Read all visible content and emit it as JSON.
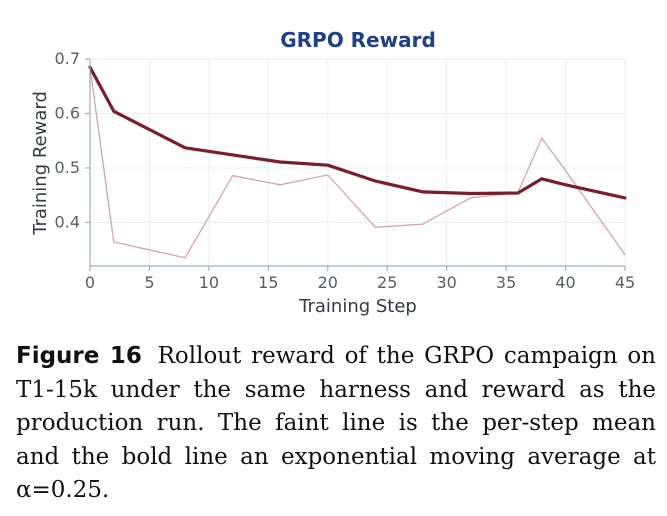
{
  "chart_data": {
    "type": "line",
    "title": "GRPO Reward",
    "xlabel": "Training Step",
    "ylabel": "Training Reward",
    "xlim": [
      0,
      45
    ],
    "ylim": [
      0.32,
      0.7
    ],
    "xticks": [
      0,
      5,
      10,
      15,
      20,
      25,
      30,
      35,
      40,
      45
    ],
    "yticks": [
      0.4,
      0.5,
      0.6,
      0.7
    ],
    "xtick_labels": [
      "0",
      "5",
      "10",
      "15",
      "20",
      "25",
      "30",
      "35",
      "40",
      "45"
    ],
    "ytick_labels": [
      "0.4",
      "0.5",
      "0.6",
      "0.7"
    ],
    "grid": true,
    "legend": false,
    "series": [
      {
        "style": "faint",
        "color": "#d4a3ad",
        "x": [
          0,
          2,
          8,
          12,
          16,
          20,
          24,
          28,
          32,
          36,
          38,
          40,
          45
        ],
        "y": [
          0.685,
          0.364,
          0.335,
          0.486,
          0.469,
          0.487,
          0.391,
          0.397,
          0.445,
          0.455,
          0.555,
          0.495,
          0.341
        ]
      },
      {
        "style": "bold",
        "color": "#7a1e2e",
        "x": [
          0,
          2,
          8,
          12,
          16,
          20,
          24,
          28,
          32,
          36,
          38,
          40,
          45
        ],
        "y": [
          0.685,
          0.604,
          0.537,
          0.524,
          0.511,
          0.505,
          0.476,
          0.456,
          0.453,
          0.454,
          0.48,
          0.469,
          0.445
        ]
      }
    ]
  },
  "caption": {
    "label": "Figure 16",
    "text": "Rollout reward of the GRPO campaign on T1-15k under the same harness and reward as the production run. The faint line is the per-step mean and the bold line an exponential moving average at α=0.25."
  },
  "colors": {
    "title": "#1f3f8a",
    "axis": "#9ab0c8",
    "tick_text": "#555d66",
    "grid": "#e8edf3"
  }
}
